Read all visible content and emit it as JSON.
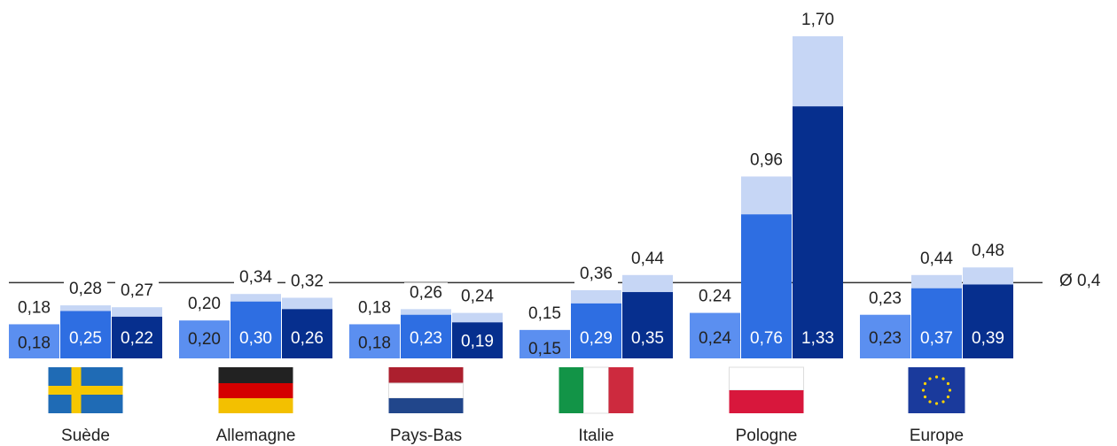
{
  "chart_data": {
    "type": "bar",
    "categories": [
      "Suède",
      "Allemagne",
      "Pays-Bas",
      "Italie",
      "Pologne",
      "Europe"
    ],
    "ylim": [
      0,
      1.7
    ],
    "series": [
      {
        "color": "#5b8ff0",
        "top_color": "#c6d6f5",
        "label_color": "#222",
        "values": [
          0.18,
          0.2,
          0.18,
          0.15,
          0.24,
          0.23
        ],
        "value_labels": [
          "0,18",
          "0,20",
          "0,18",
          "0,15",
          "0,24",
          "0,23"
        ],
        "totals": [
          0.18,
          0.2,
          0.18,
          0.15,
          0.24,
          0.23
        ],
        "total_labels": [
          "0,18",
          "0,20",
          "0,18",
          "0,15",
          "0.24",
          "0,23"
        ]
      },
      {
        "color": "#2e6ee2",
        "top_color": "#c6d6f5",
        "label_color": "#fff",
        "values": [
          0.25,
          0.3,
          0.23,
          0.29,
          0.76,
          0.37
        ],
        "value_labels": [
          "0,25",
          "0,30",
          "0,23",
          "0,29",
          "0,76",
          "0,37"
        ],
        "totals": [
          0.28,
          0.34,
          0.26,
          0.36,
          0.96,
          0.44
        ],
        "total_labels": [
          "0,28",
          "0,34",
          "0,26",
          "0,36",
          "0,96",
          "0,44"
        ]
      },
      {
        "color": "#062f8e",
        "top_color": "#c6d6f5",
        "label_color": "#fff",
        "values": [
          0.22,
          0.26,
          0.19,
          0.35,
          1.33,
          0.39
        ],
        "value_labels": [
          "0,22",
          "0,26",
          "0,19",
          "0,35",
          "1,33",
          "0,39"
        ],
        "totals": [
          0.27,
          0.32,
          0.24,
          0.44,
          1.7,
          0.48
        ],
        "total_labels": [
          "0,27",
          "0,32",
          "0,24",
          "0,44",
          "1,70",
          "0,48"
        ]
      }
    ],
    "average": 0.4,
    "average_label": "Ø 0,4",
    "average_color": "#333"
  }
}
